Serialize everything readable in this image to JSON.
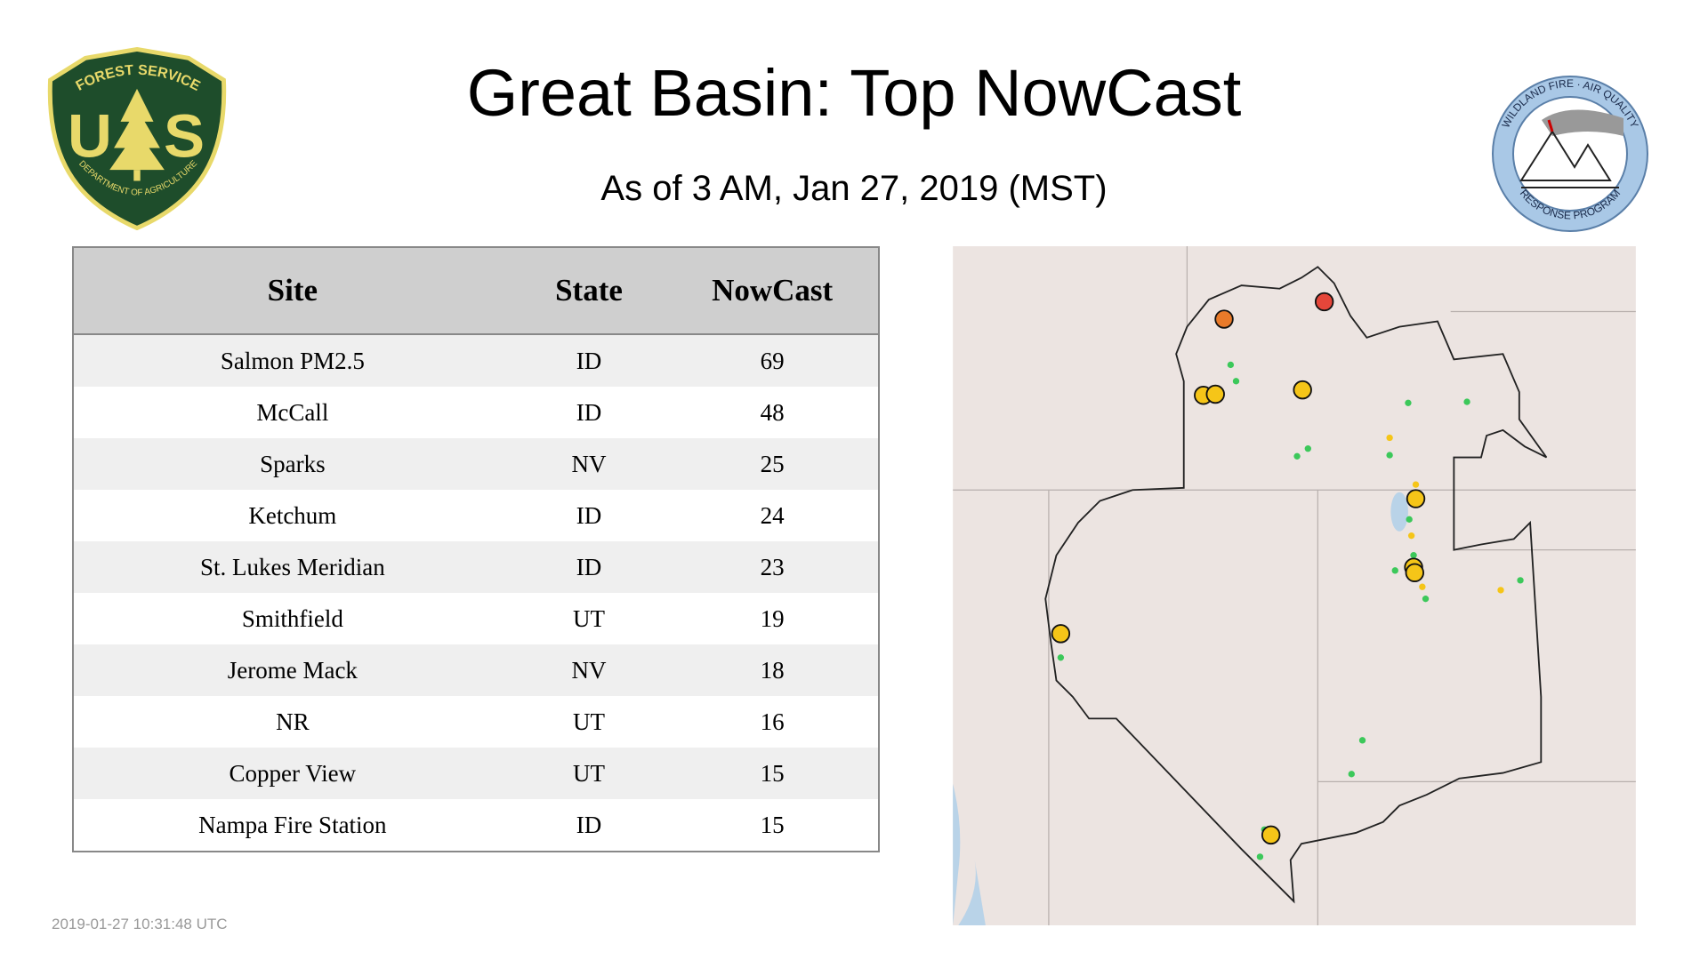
{
  "header": {
    "title": "Great Basin: Top NowCast",
    "subtitle": "As of  3 AM, Jan 27, 2019 (MST)"
  },
  "logos": {
    "usfs": {
      "arc": "FOREST SERVICE",
      "left_letter": "U",
      "right_letter": "S",
      "bottom_arc": "DEPARTMENT OF AGRICULTURE"
    },
    "wfaqrp": {
      "top_arc": "WILDLAND FIRE · AIR QUALITY",
      "bottom_arc": "RESPONSE PROGRAM"
    }
  },
  "table": {
    "columns": [
      "Site",
      "State",
      "NowCast"
    ],
    "rows": [
      [
        "Salmon PM2.5",
        "ID",
        69
      ],
      [
        "McCall",
        "ID",
        48
      ],
      [
        "Sparks",
        "NV",
        25
      ],
      [
        "Ketchum",
        "ID",
        24
      ],
      [
        "St. Lukes Meridian",
        "ID",
        23
      ],
      [
        "Smithfield",
        "UT",
        19
      ],
      [
        "Jerome Mack",
        "NV",
        18
      ],
      [
        "NR",
        "UT",
        16
      ],
      [
        "Copper View",
        "UT",
        15
      ],
      [
        "Nampa Fire Station",
        "ID",
        15
      ]
    ]
  },
  "footer": {
    "timestamp": "2019-01-27 10:31:48 UTC"
  }
}
